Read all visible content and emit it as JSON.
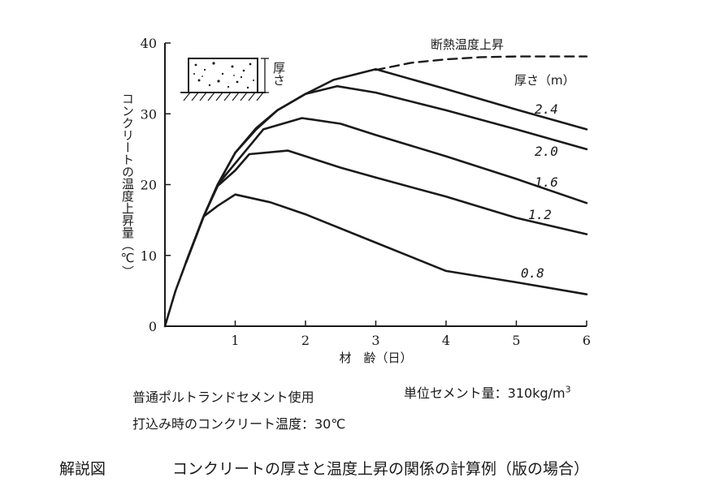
{
  "chart_data": {
    "type": "line",
    "title": "",
    "xlabel": "材　齢（日）",
    "ylabel": "コンクリートの温度上昇量（℃）",
    "xlim": [
      0,
      6
    ],
    "ylim": [
      0,
      40
    ],
    "xticks": [
      1,
      2,
      3,
      4,
      5,
      6
    ],
    "yticks": [
      0,
      10,
      20,
      30,
      40
    ],
    "grid": false,
    "legend_title": "厚さ（m）",
    "series": [
      {
        "name": "断熱温度上昇",
        "style": "dashed",
        "x": [
          3.0,
          3.5,
          4.0,
          4.5,
          5.0,
          5.5,
          6.0
        ],
        "y": [
          36.2,
          37.2,
          37.7,
          38.0,
          38.1,
          38.1,
          38.1
        ]
      },
      {
        "name": "2.4",
        "style": "solid",
        "x": [
          0,
          0.15,
          0.3,
          0.55,
          0.75,
          1.0,
          1.3,
          1.6,
          2.0,
          2.4,
          3.0,
          4.0,
          5.0,
          6.0
        ],
        "y": [
          0,
          5,
          9,
          15.5,
          20,
          24.5,
          28,
          30.5,
          32.8,
          34.8,
          36.3,
          33.5,
          30.6,
          27.8
        ]
      },
      {
        "name": "2.0",
        "style": "solid",
        "x": [
          0.3,
          0.55,
          0.75,
          1.0,
          1.3,
          1.6,
          2.0,
          2.45,
          3.0,
          4.0,
          5.0,
          6.0
        ],
        "y": [
          9,
          15.5,
          20,
          24.5,
          27.8,
          30.5,
          32.8,
          33.9,
          33.0,
          30.5,
          27.8,
          25.0
        ]
      },
      {
        "name": "1.6",
        "style": "solid",
        "x": [
          0.3,
          0.55,
          0.75,
          1.0,
          1.4,
          1.95,
          2.5,
          3.0,
          4.0,
          5.0,
          6.0
        ],
        "y": [
          9,
          15.5,
          20,
          23.0,
          27.8,
          29.4,
          28.6,
          27.0,
          24.0,
          20.8,
          17.4
        ]
      },
      {
        "name": "1.2",
        "style": "solid",
        "x": [
          0.3,
          0.55,
          0.75,
          1.0,
          1.2,
          1.75,
          2.5,
          3.0,
          4.0,
          5.0,
          6.0
        ],
        "y": [
          9,
          15.5,
          19.8,
          22.0,
          24.3,
          24.8,
          22.4,
          21.0,
          18.3,
          15.3,
          13.0
        ]
      },
      {
        "name": "0.8",
        "style": "solid",
        "x": [
          0.3,
          0.55,
          0.75,
          1.0,
          1.5,
          2.0,
          3.0,
          4.0,
          5.0,
          6.0
        ],
        "y": [
          9,
          15.5,
          17.0,
          18.6,
          17.5,
          15.8,
          11.8,
          7.8,
          6.2,
          4.5
        ]
      }
    ],
    "annotations": [
      "断熱温度上昇",
      "2.4",
      "2.0",
      "1.6",
      "1.2",
      "0.8"
    ],
    "inset_label": "厚さ"
  },
  "notes": {
    "line1a": "普通ポルトランドセメント使用",
    "line1b": "単位セメント量：310kg/m",
    "line1b_sup": "3",
    "line2": "打込み時のコンクリート温度：30℃"
  },
  "caption": {
    "label": "解説図",
    "text": "コンクリートの厚さと温度上昇の関係の計算例（版の場合）"
  }
}
